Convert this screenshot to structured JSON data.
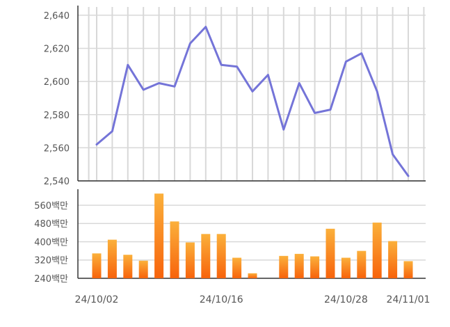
{
  "chart_data": [
    {
      "type": "line",
      "title": "",
      "xlabel": "",
      "ylabel": "",
      "ylim": [
        2540,
        2645
      ],
      "yticks": [
        2540,
        2560,
        2580,
        2600,
        2620,
        2640
      ],
      "ytick_labels": [
        "2,540",
        "2,560",
        "2,580",
        "2,600",
        "2,620",
        "2,640"
      ],
      "grid": true,
      "series": [
        {
          "values": [
            2562,
            2570,
            2610,
            2595,
            2599,
            2597,
            2623,
            2633,
            2610,
            2609,
            2594,
            2604,
            2571,
            2599,
            2581,
            2583,
            2612,
            2617,
            2594,
            2556,
            2543
          ]
        }
      ]
    },
    {
      "type": "bar",
      "title": "",
      "xlabel": "",
      "ylabel": "",
      "ylim": [
        240,
        630
      ],
      "yticks": [
        240,
        320,
        400,
        480,
        560
      ],
      "ytick_labels": [
        "240백만",
        "320백만",
        "400백만",
        "480백만",
        "560백만"
      ],
      "grid": true,
      "values": [
        349,
        409,
        343,
        317,
        611,
        489,
        397,
        434,
        434,
        330,
        262,
        null,
        338,
        347,
        336,
        457,
        330,
        360,
        484,
        403,
        315
      ]
    }
  ],
  "x_tick_labels": [
    {
      "index": 0,
      "label": "24/10/02"
    },
    {
      "index": 8,
      "label": "24/10/16"
    },
    {
      "index": 16,
      "label": "24/10/28"
    },
    {
      "index": 20,
      "label": "24/11/01"
    }
  ],
  "colors": {
    "line": "#7474d8",
    "bar_top": "#fbb03b",
    "bar_bottom": "#f7630c",
    "grid": "#d8d8d8",
    "axis": "#333333"
  }
}
